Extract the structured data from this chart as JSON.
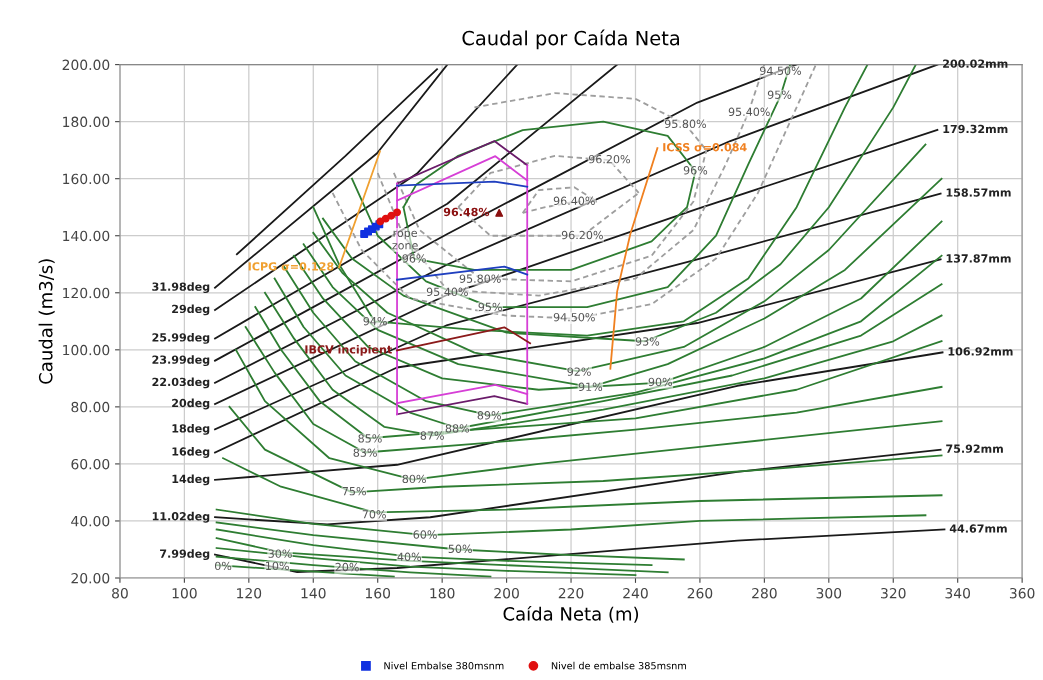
{
  "chart_data": {
    "type": "line",
    "title": "Caudal por Caída Neta",
    "xlabel": "Caída Neta (m)",
    "ylabel": "Caudal (m3/s)",
    "xlim": [
      80,
      360
    ],
    "xticks": [
      80,
      100,
      120,
      140,
      160,
      180,
      200,
      220,
      240,
      260,
      280,
      300,
      320,
      340,
      360
    ],
    "ylim": [
      20,
      200
    ],
    "yticks": [
      {
        "value": 20,
        "label": "20.00"
      },
      {
        "value": 40,
        "label": "40.00"
      },
      {
        "value": 60,
        "label": "60.00"
      },
      {
        "value": 80,
        "label": "80.00"
      },
      {
        "value": 100,
        "label": "100.00"
      },
      {
        "value": 120,
        "label": "120.00"
      },
      {
        "value": 140,
        "label": "140.00"
      },
      {
        "value": 160,
        "label": "160.00"
      },
      {
        "value": 180,
        "label": "180.00"
      },
      {
        "value": 200,
        "label": "200.00"
      }
    ],
    "grid": true,
    "legend": "bottom",
    "marker": "none",
    "line_style": "solid",
    "series": [
      {
        "color": "#1a1a1a",
        "x": [
          109.5,
          135,
          166,
          271.6,
          335.9
        ],
        "values": [
          28.2,
          22.1,
          23.5,
          33.1,
          37.0
        ]
      },
      {
        "color": "#1a1a1a",
        "x": [
          109.5,
          144.3,
          176.3,
          271.6,
          334.7
        ],
        "values": [
          41.3,
          38.8,
          41.3,
          57.2,
          65.0
        ]
      },
      {
        "color": "#1a1a1a",
        "x": [
          109.5,
          166,
          271.6,
          335.3
        ],
        "values": [
          54.4,
          59.7,
          87.4,
          99.1
        ]
      },
      {
        "color": "#1a1a1a",
        "x": [
          109.5,
          166,
          259.2,
          334.7
        ],
        "values": [
          64.0,
          93.8,
          109.4,
          131.7
        ]
      },
      {
        "color": "#1a1a1a",
        "x": [
          109.5,
          181.6,
          259.2,
          334.7
        ],
        "values": [
          72.1,
          108.7,
          131.7,
          154.8
        ]
      },
      {
        "color": "#1a1a1a",
        "x": [
          109.5,
          181.6,
          259.2,
          333.7
        ],
        "values": [
          81.0,
          119.3,
          149.4,
          177.1
        ]
      },
      {
        "color": "#1a1a1a",
        "x": [
          109.5,
          181.6,
          269.4,
          333.7
        ],
        "values": [
          88.4,
          129.9,
          173.2,
          200.0
        ]
      },
      {
        "color": "#1a1a1a",
        "x": [
          109.5,
          181.6,
          259.2,
          290
        ],
        "values": [
          96.2,
          140.6,
          186.7,
          200
        ]
      },
      {
        "color": "#1a1a1a",
        "x": [
          109.5,
          181.6,
          234.3
        ],
        "values": [
          104.0,
          151.2,
          200
        ]
      },
      {
        "color": "#1a1a1a",
        "x": [
          109.5,
          172.2,
          203.3
        ],
        "values": [
          114.0,
          161.8,
          200
        ]
      },
      {
        "color": "#1a1a1a",
        "x": [
          109.5,
          159.8,
          181.6
        ],
        "values": [
          121.8,
          168.9,
          200
        ]
      },
      {
        "color": "#1a1a1a",
        "x": [
          116.3,
          150,
          178.4
        ],
        "values": [
          133.5,
          168,
          198.4
        ]
      },
      {
        "color": "#2e7d32",
        "x": [
          110,
          130,
          150,
          165
        ],
        "values": [
          24.5,
          23,
          21.5,
          20.5
        ]
      },
      {
        "color": "#2e7d32",
        "x": [
          110,
          140,
          170,
          195
        ],
        "values": [
          27.5,
          24.5,
          22,
          20.5
        ]
      },
      {
        "color": "#2e7d32",
        "x": [
          110,
          140,
          170,
          200,
          240
        ],
        "values": [
          30.5,
          27,
          24,
          22.5,
          21
        ]
      },
      {
        "color": "#2e7d32",
        "x": [
          110,
          130,
          170,
          210,
          250
        ],
        "values": [
          34,
          29,
          26,
          24,
          22
        ]
      },
      {
        "color": "#2e7d32",
        "x": [
          110,
          140,
          170,
          200,
          245
        ],
        "values": [
          37,
          31.5,
          27.5,
          26,
          24.5
        ]
      },
      {
        "color": "#2e7d32",
        "x": [
          110,
          140,
          185,
          220,
          255
        ],
        "values": [
          39.5,
          35,
          30,
          28,
          26.5
        ]
      },
      {
        "color": "#2e7d32",
        "x": [
          110,
          140,
          175,
          220,
          260,
          330
        ],
        "values": [
          44,
          39,
          35,
          37,
          40,
          42
        ]
      },
      {
        "color": "#2e7d32",
        "x": [
          112,
          130,
          159,
          200,
          260,
          335
        ],
        "values": [
          62,
          52,
          43,
          44,
          47,
          49
        ]
      },
      {
        "color": "#2e7d32",
        "x": [
          114,
          125,
          152,
          180,
          230,
          280,
          335
        ],
        "values": [
          80,
          65,
          50,
          52,
          54,
          58,
          63
        ]
      },
      {
        "color": "#2e7d32",
        "x": [
          116,
          125,
          145,
          171,
          210,
          260,
          335
        ],
        "values": [
          100,
          82,
          62,
          54.5,
          60,
          66,
          75
        ]
      },
      {
        "color": "#2e7d32",
        "x": [
          119,
          128,
          140,
          156,
          190,
          240,
          290,
          335
        ],
        "values": [
          108,
          92,
          74,
          64,
          67,
          72,
          78,
          87
        ]
      },
      {
        "color": "#2e7d32",
        "x": [
          122,
          130,
          142,
          157,
          190,
          240,
          290,
          335
        ],
        "values": [
          115,
          100,
          82,
          69,
          72,
          76,
          86,
          103
        ]
      },
      {
        "color": "#2e7d32",
        "x": [
          125,
          134,
          146,
          162,
          177,
          230,
          280,
          320,
          335
        ],
        "values": [
          120,
          104,
          86,
          73,
          70,
          79,
          90,
          103,
          112
        ]
      },
      {
        "color": "#2e7d32",
        "x": [
          128,
          137,
          150,
          170,
          185,
          230,
          270,
          310,
          335
        ],
        "values": [
          125,
          108,
          91,
          78,
          72.5,
          82,
          91,
          105,
          123
        ]
      },
      {
        "color": "#2e7d32",
        "x": [
          131,
          140,
          153,
          175,
          195,
          240,
          280,
          310,
          335
        ],
        "values": [
          129,
          113,
          96,
          82,
          77,
          85,
          97,
          110,
          133
        ]
      },
      {
        "color": "#2e7d32",
        "x": [
          134,
          143,
          157,
          180,
          210,
          248,
          280,
          310,
          335
        ],
        "values": [
          133,
          118,
          101,
          90,
          86,
          88.5,
          101,
          118,
          145
        ]
      },
      {
        "color": "#2e7d32",
        "x": [
          137,
          146,
          160,
          185,
          226,
          250,
          280,
          305,
          335
        ],
        "values": [
          137,
          122,
          107,
          95,
          87,
          95,
          111,
          128,
          160
        ]
      },
      {
        "color": "#2e7d32",
        "x": [
          140,
          149,
          163,
          190,
          222,
          255,
          280,
          300,
          330
        ],
        "values": [
          141,
          127,
          113,
          99,
          92.5,
          101,
          117,
          135,
          172
        ]
      },
      {
        "color": "#2e7d32",
        "x": [
          143,
          152,
          168,
          200,
          243,
          265,
          285,
          300,
          320,
          327
        ],
        "values": [
          146,
          132,
          119,
          106,
          103,
          113,
          130,
          150,
          185,
          200
        ]
      },
      {
        "color": "#2e7d32",
        "x": [
          140,
          148,
          159,
          190,
          225,
          255,
          275,
          290,
          305,
          312
        ],
        "values": [
          150,
          130,
          110,
          107,
          105,
          110,
          125,
          150,
          185,
          200
        ]
      },
      {
        "color": "#9e9e9e",
        "line_style": "dashed",
        "x": [
          146,
          155,
          170,
          200,
          221,
          245,
          265,
          278,
          290,
          296
        ],
        "values": [
          155,
          135,
          118,
          112,
          111,
          116,
          132,
          155,
          185,
          200
        ]
      },
      {
        "color": "#2e7d32",
        "x": [
          152,
          160,
          175,
          195,
          225,
          250,
          265,
          275,
          285,
          288
        ],
        "values": [
          160,
          140,
          124,
          115,
          115,
          122,
          140,
          165,
          189,
          200
        ]
      },
      {
        "color": "#9e9e9e",
        "line_style": "dashed",
        "x": [
          160,
          168,
          181.6,
          210,
          240,
          258,
          268,
          275,
          280
        ],
        "values": [
          162,
          140,
          121,
          119,
          125,
          142,
          165,
          183,
          200
        ]
      },
      {
        "color": "#9e9e9e",
        "line_style": "dashed",
        "x": [
          165,
          173,
          191.8,
          220,
          245,
          258,
          262
        ],
        "values": [
          162,
          142,
          125,
          124,
          133,
          152,
          170
        ]
      },
      {
        "color": "#9e9e9e",
        "line_style": "dashed",
        "x": [
          190,
          215,
          240,
          255.5,
          262
        ],
        "values": [
          185,
          190,
          188,
          179,
          170
        ]
      },
      {
        "color": "#2e7d32",
        "x": [
          168,
          171.3,
          190,
          220,
          245,
          256,
          258.6
        ],
        "values": [
          150,
          132,
          128,
          128,
          138,
          150,
          162.6
        ]
      },
      {
        "color": "#2e7d32",
        "x": [
          168,
          172,
          185,
          205,
          230,
          250,
          258.6
        ],
        "values": [
          150,
          158,
          168,
          177,
          180,
          175,
          162.6
        ]
      },
      {
        "color": "#9e9e9e",
        "line_style": "dashed",
        "x": [
          185,
          195,
          223.5,
          241
        ],
        "values": [
          150,
          140,
          140,
          155
        ]
      },
      {
        "color": "#9e9e9e",
        "line_style": "dashed",
        "x": [
          185,
          195,
          215,
          231.9,
          241
        ],
        "values": [
          150,
          162,
          168,
          166.5,
          155
        ]
      },
      {
        "color": "#9e9e9e",
        "line_style": "dashed",
        "x": [
          205,
          212,
          221,
          228
        ],
        "values": [
          148,
          150,
          151.9,
          152
        ]
      },
      {
        "color": "#9e9e9e",
        "line_style": "dashed",
        "x": [
          205,
          210,
          221,
          228
        ],
        "values": [
          148,
          156,
          157,
          152
        ]
      },
      {
        "color": "#d63fd6",
        "x": [
          166.0,
          196.5,
          206.4
        ],
        "values": [
          152.3,
          167.9,
          159.4
        ]
      },
      {
        "color": "#d63fd6",
        "x": [
          166.0,
          196.5,
          206.4
        ],
        "values": [
          81.3,
          87.7,
          84.5
        ]
      },
      {
        "color": "#6a1b6a",
        "x": [
          166.0,
          196.2,
          206.4
        ],
        "values": [
          158.3,
          173.2,
          164.7
        ]
      },
      {
        "color": "#6a1b6a",
        "x": [
          166.0,
          196.2,
          206.4
        ],
        "values": [
          77.4,
          83.8,
          81.0
        ]
      },
      {
        "color": "#d63fd6",
        "x": [
          166.0,
          166.0
        ],
        "values": [
          77.4,
          158.3
        ]
      },
      {
        "color": "#d63fd6",
        "x": [
          206.4,
          206.4
        ],
        "values": [
          81.0,
          164.7
        ]
      },
      {
        "color": "#1f3fbf",
        "x": [
          166,
          196.2,
          206.4
        ],
        "values": [
          157.6,
          159.0,
          157.2
        ]
      },
      {
        "color": "#1f3fbf",
        "x": [
          166,
          199.3,
          206.4
        ],
        "values": [
          124.6,
          129.2,
          126.4
        ]
      },
      {
        "name": "IBCV incipient",
        "color": "#8b1a1a",
        "x": [
          166,
          199.3,
          207.3
        ],
        "values": [
          99.8,
          107.9,
          102.3
        ]
      },
      {
        "name": "ICPG σ=0.128",
        "color": "#f0a030",
        "x": [
          148.0,
          160.7
        ],
        "values": [
          128.9,
          169.6
        ]
      },
      {
        "name": "ICSS σ=0.084",
        "color": "#f08020",
        "x": [
          246.8,
          238.4,
          234.3,
          232.2
        ],
        "values": [
          170.7,
          140.6,
          120.4,
          93.4
        ]
      },
      {
        "type": "scatter",
        "name": "Nivel Embalse 380msnm",
        "color": "#1030e0",
        "marker": "square",
        "x": [
          155.8,
          157.0,
          158.2,
          159.4,
          160.5
        ],
        "values": [
          140.6,
          141.5,
          142.3,
          143.2,
          144.0
        ]
      },
      {
        "type": "scatter",
        "name": "Nivel de embalse 385msnm",
        "color": "#e01010",
        "marker": "circle",
        "x": [
          160.8,
          162.5,
          164.2,
          166.0
        ],
        "values": [
          145.0,
          146.0,
          147.0,
          148.2
        ]
      },
      {
        "type": "scatter",
        "color": "#8b1010",
        "marker": "triangle",
        "x": [
          197.7
        ],
        "values": [
          148.0
        ]
      }
    ],
    "annotations": [
      {
        "text": "31.98deg",
        "x": 109.5,
        "y": 121.8
      },
      {
        "text": "29deg",
        "x": 109.5,
        "y": 114.0
      },
      {
        "text": "25.99deg",
        "x": 109.5,
        "y": 104.0
      },
      {
        "text": "23.99deg",
        "x": 109.5,
        "y": 96.2
      },
      {
        "text": "22.03deg",
        "x": 109.5,
        "y": 88.4
      },
      {
        "text": "20deg",
        "x": 109.5,
        "y": 81.0
      },
      {
        "text": "18deg",
        "x": 109.5,
        "y": 72.1
      },
      {
        "text": "16deg",
        "x": 109.5,
        "y": 64.0
      },
      {
        "text": "14deg",
        "x": 109.5,
        "y": 54.4
      },
      {
        "text": "11.02deg",
        "x": 109.5,
        "y": 41.3
      },
      {
        "text": "7.99deg",
        "x": 109.5,
        "y": 28.2
      },
      {
        "text": "200.02mm",
        "x": 333.7,
        "y": 200.0
      },
      {
        "text": "179.32mm",
        "x": 333.7,
        "y": 177.1
      },
      {
        "text": "158.57mm",
        "x": 334.7,
        "y": 154.8
      },
      {
        "text": "137.87mm",
        "x": 334.7,
        "y": 131.7
      },
      {
        "text": "106.92mm",
        "x": 335.3,
        "y": 99.1
      },
      {
        "text": "75.92mm",
        "x": 334.7,
        "y": 65.0
      },
      {
        "text": "44.67mm",
        "x": 335.9,
        "y": 37.0
      },
      {
        "text": "0%",
        "x": 112,
        "y": 23.9
      },
      {
        "text": "10%",
        "x": 128.8,
        "y": 23.9
      },
      {
        "text": "20%",
        "x": 150.5,
        "y": 23.5
      },
      {
        "text": "30%",
        "x": 129.7,
        "y": 28.2
      },
      {
        "text": "40%",
        "x": 169.8,
        "y": 27.1
      },
      {
        "text": "50%",
        "x": 185.6,
        "y": 29.9
      },
      {
        "text": "60%",
        "x": 174.7,
        "y": 34.9
      },
      {
        "text": "70%",
        "x": 158.9,
        "y": 42.0
      },
      {
        "text": "75%",
        "x": 152.7,
        "y": 50.1
      },
      {
        "text": "80%",
        "x": 171.3,
        "y": 54.4
      },
      {
        "text": "83%",
        "x": 156.1,
        "y": 63.6
      },
      {
        "text": "85%",
        "x": 157.6,
        "y": 68.6
      },
      {
        "text": "87%",
        "x": 176.9,
        "y": 69.6
      },
      {
        "text": "88%",
        "x": 184.7,
        "y": 72.1
      },
      {
        "text": "89%",
        "x": 194.6,
        "y": 76.7
      },
      {
        "text": "90%",
        "x": 247.7,
        "y": 88.4
      },
      {
        "text": "91%",
        "x": 226.0,
        "y": 86.7
      },
      {
        "text": "92%",
        "x": 222.5,
        "y": 92.0
      },
      {
        "text": "93%",
        "x": 243.7,
        "y": 102.6
      },
      {
        "text": "94%",
        "x": 159.2,
        "y": 109.7
      },
      {
        "text": "94.50%",
        "x": 221.0,
        "y": 111.1
      },
      {
        "text": "95%",
        "x": 194.9,
        "y": 114.7
      },
      {
        "text": "95.40%",
        "x": 181.6,
        "y": 120.0
      },
      {
        "text": "95.80%",
        "x": 191.8,
        "y": 124.6
      },
      {
        "text": "96%",
        "x": 171.3,
        "y": 131.7
      },
      {
        "text": "96.20%",
        "x": 223.5,
        "y": 139.9
      },
      {
        "text": "96.40%",
        "x": 221.0,
        "y": 151.9
      },
      {
        "text": "96.48%",
        "x": 197.7,
        "y": 148.0
      },
      {
        "text": "96.20%",
        "x": 231.9,
        "y": 166.5
      },
      {
        "text": "95.80%",
        "x": 255.5,
        "y": 178.9
      },
      {
        "text": "96%",
        "x": 258.6,
        "y": 162.6
      },
      {
        "text": "95.40%",
        "x": 275.3,
        "y": 183.1
      },
      {
        "text": "95%",
        "x": 284.7,
        "y": 189.1
      },
      {
        "text": "94.50%",
        "x": 285.0,
        "y": 197.5
      },
      {
        "text": "rope\nzone",
        "x": 168.5,
        "y": 138.5
      }
    ]
  }
}
